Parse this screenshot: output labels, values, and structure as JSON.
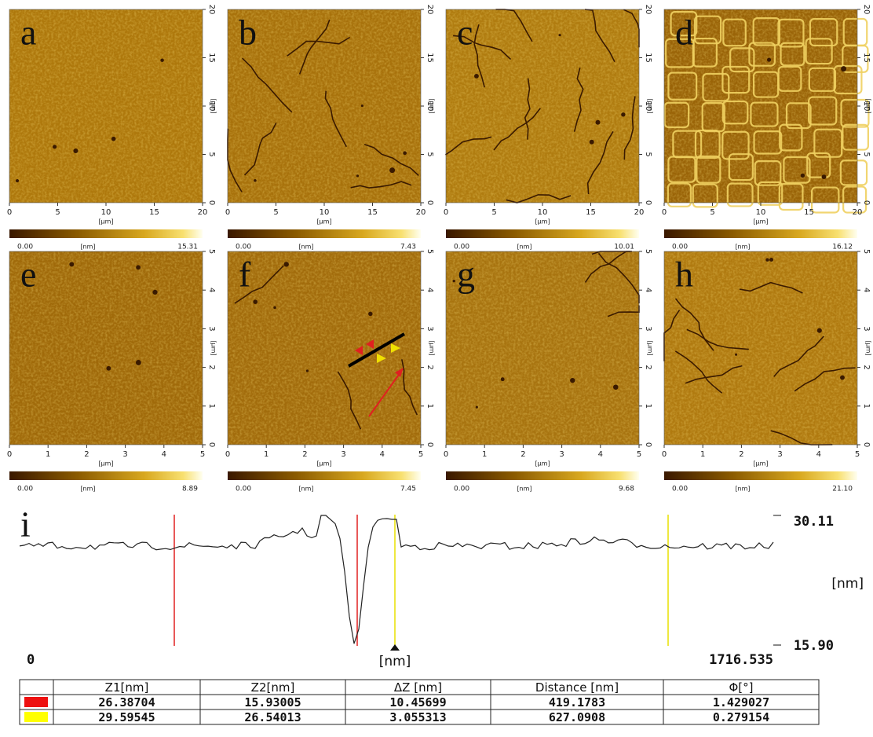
{
  "panels": [
    {
      "letter": "a",
      "xticks": [
        "0",
        "5",
        "10",
        "15",
        "20"
      ],
      "yticks": [
        "0",
        "5",
        "10",
        "15",
        "20"
      ],
      "x_unit": "[μm]",
      "y_unit": "[μm]",
      "cbar_min": "0.00",
      "cbar_unit": "[nm]",
      "cbar_max": "15.31"
    },
    {
      "letter": "b",
      "xticks": [
        "0",
        "5",
        "10",
        "15",
        "20"
      ],
      "yticks": [
        "0",
        "5",
        "10",
        "15",
        "20"
      ],
      "x_unit": "[μm]",
      "y_unit": "[μm]",
      "cbar_min": "0.00",
      "cbar_unit": "[nm]",
      "cbar_max": "7.43"
    },
    {
      "letter": "c",
      "xticks": [
        "0",
        "5",
        "10",
        "15",
        "20"
      ],
      "yticks": [
        "0",
        "5",
        "10",
        "15",
        "20"
      ],
      "x_unit": "[μm]",
      "y_unit": "[μm]",
      "cbar_min": "0.00",
      "cbar_unit": "[nm]",
      "cbar_max": "10.01"
    },
    {
      "letter": "d",
      "xticks": [
        "0",
        "5",
        "10",
        "15",
        "20"
      ],
      "yticks": [
        "0",
        "5",
        "10",
        "15",
        "20"
      ],
      "x_unit": "[μm]",
      "y_unit": "[μm]",
      "cbar_min": "0.00",
      "cbar_unit": "[nm]",
      "cbar_max": "16.12"
    },
    {
      "letter": "e",
      "xticks": [
        "0",
        "1",
        "2",
        "3",
        "4",
        "5"
      ],
      "yticks": [
        "0",
        "1",
        "2",
        "3",
        "4",
        "5"
      ],
      "x_unit": "[μm]",
      "y_unit": "[μm]",
      "cbar_min": "0.00",
      "cbar_unit": "[nm]",
      "cbar_max": "8.89"
    },
    {
      "letter": "f",
      "xticks": [
        "0",
        "1",
        "2",
        "3",
        "4",
        "5"
      ],
      "yticks": [
        "0",
        "1",
        "2",
        "3",
        "4",
        "5"
      ],
      "x_unit": "[μm]",
      "y_unit": "[μm]",
      "cbar_min": "0.00",
      "cbar_unit": "[nm]",
      "cbar_max": "7.45"
    },
    {
      "letter": "g",
      "xticks": [
        "0",
        "1",
        "2",
        "3",
        "4",
        "5"
      ],
      "yticks": [
        "0",
        "1",
        "2",
        "3",
        "4",
        "5"
      ],
      "x_unit": "[μm]",
      "y_unit": "[μm]",
      "cbar_min": "0.00",
      "cbar_unit": "[nm]",
      "cbar_max": "9.68"
    },
    {
      "letter": "h",
      "xticks": [
        "0",
        "1",
        "2",
        "3",
        "4",
        "5"
      ],
      "yticks": [
        "0",
        "1",
        "2",
        "3",
        "4",
        "5"
      ],
      "x_unit": "[μm]",
      "y_unit": "[μm]",
      "cbar_min": "0.00",
      "cbar_unit": "[nm]",
      "cbar_max": "21.10"
    }
  ],
  "profile": {
    "letter": "i",
    "y_max": "30.11",
    "y_min": "15.90",
    "y_unit": "[nm]",
    "x_min": "0",
    "x_max": "1716.535",
    "x_unit": "[nm]"
  },
  "table": {
    "header": [
      "Z1[nm]",
      "Z2[nm]",
      "ΔZ [nm]",
      "Distance [nm]",
      "Φ[°]"
    ],
    "rows": [
      [
        "26.38704",
        "15.93005",
        "10.45699",
        "419.1783",
        "1.429027"
      ],
      [
        "29.59545",
        "26.54013",
        "3.055313",
        "627.0908",
        "0.279154"
      ]
    ]
  }
}
